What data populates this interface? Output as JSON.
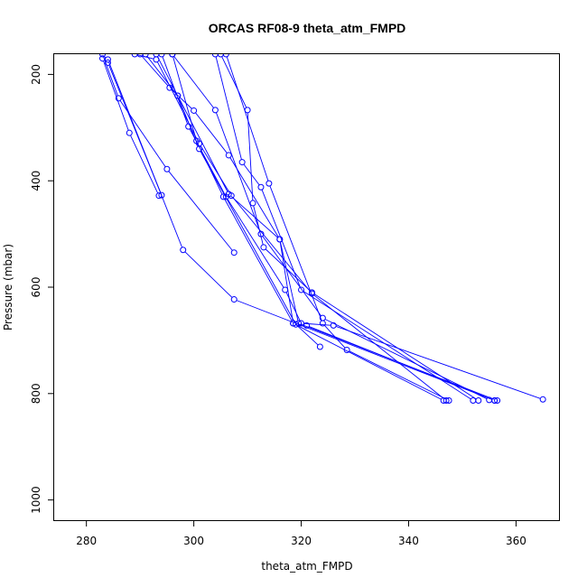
{
  "chart_data": {
    "type": "line",
    "title": "ORCAS RF08-9 theta_atm_FMPD",
    "xlabel": "theta_atm_FMPD",
    "ylabel": "Pressure (mbar)",
    "xlim": [
      274,
      368
    ],
    "ylim": [
      1038,
      162
    ],
    "y_reversed": true,
    "x_ticks": [
      280,
      300,
      320,
      340,
      360
    ],
    "y_ticks": [
      200,
      400,
      600,
      800,
      1000
    ],
    "grid": false,
    "color": "#0000ff",
    "series": [
      {
        "points": [
          [
            289,
            162
          ],
          [
            293,
            172
          ],
          [
            301,
            330
          ],
          [
            307,
            428
          ],
          [
            322,
            612
          ],
          [
            347,
            813
          ]
        ]
      },
      {
        "points": [
          [
            283,
            162
          ],
          [
            286,
            245
          ],
          [
            295,
            378
          ],
          [
            307.5,
            535
          ]
        ]
      },
      {
        "points": [
          [
            283,
            170
          ],
          [
            288,
            310
          ],
          [
            293.5,
            428
          ]
        ]
      },
      {
        "points": [
          [
            284,
            178
          ],
          [
            294,
            427
          ]
        ]
      },
      {
        "points": [
          [
            290,
            162
          ],
          [
            295.5,
            225
          ],
          [
            300,
            268
          ],
          [
            306.5,
            352
          ],
          [
            316,
            510
          ],
          [
            318.5,
            668
          ],
          [
            346.5,
            813
          ]
        ]
      },
      {
        "points": [
          [
            284,
            172
          ],
          [
            298,
            530
          ],
          [
            307.5,
            623
          ],
          [
            356,
            813
          ]
        ]
      },
      {
        "points": [
          [
            304,
            162
          ],
          [
            309,
            365
          ],
          [
            312.5,
            412
          ],
          [
            320,
            605
          ],
          [
            352,
            813
          ]
        ]
      },
      {
        "points": [
          [
            305,
            162
          ],
          [
            310,
            267
          ],
          [
            311,
            442
          ],
          [
            313,
            525
          ],
          [
            322,
            610
          ],
          [
            353,
            813
          ]
        ]
      },
      {
        "points": [
          [
            296,
            162
          ],
          [
            304,
            267
          ],
          [
            312.5,
            500
          ],
          [
            324,
            658
          ],
          [
            355,
            812
          ]
        ]
      },
      {
        "points": [
          [
            293,
            162
          ],
          [
            297,
            240
          ],
          [
            306.5,
            425
          ],
          [
            316,
            510
          ],
          [
            319.5,
            668
          ],
          [
            356.5,
            813
          ]
        ]
      },
      {
        "points": [
          [
            294,
            162
          ],
          [
            299,
            298
          ],
          [
            306,
            430
          ],
          [
            317,
            605
          ],
          [
            320,
            668
          ],
          [
            326,
            672
          ],
          [
            365,
            811
          ]
        ]
      },
      {
        "points": [
          [
            296,
            162
          ],
          [
            300.5,
            325
          ],
          [
            305.5,
            430
          ],
          [
            318.5,
            668
          ],
          [
            321,
            672
          ],
          [
            356,
            813
          ]
        ]
      },
      {
        "points": [
          [
            291,
            162
          ],
          [
            297,
            240
          ],
          [
            301,
            340
          ],
          [
            319,
            670
          ],
          [
            323.5,
            712
          ]
        ]
      },
      {
        "points": [
          [
            306,
            162
          ],
          [
            314,
            405
          ],
          [
            324,
            668
          ],
          [
            328.5,
            718
          ],
          [
            347.5,
            813
          ]
        ]
      }
    ]
  }
}
